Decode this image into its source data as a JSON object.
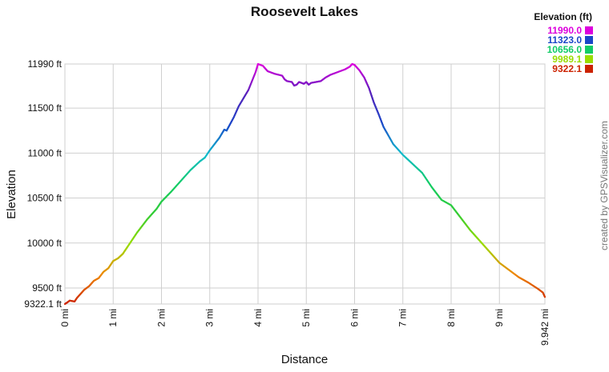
{
  "chart_data": {
    "type": "line",
    "title": "Roosevelt Lakes",
    "xlabel": "Distance",
    "ylabel": "Elevation",
    "credit": "created by GPSVisualizer.com",
    "xlim": [
      0,
      9.942
    ],
    "ylim": [
      9322.1,
      11990
    ],
    "x_ticks": [
      {
        "value": 0,
        "label": "0 mi"
      },
      {
        "value": 1,
        "label": "1 mi"
      },
      {
        "value": 2,
        "label": "2 mi"
      },
      {
        "value": 3,
        "label": "3 mi"
      },
      {
        "value": 4,
        "label": "4 mi"
      },
      {
        "value": 5,
        "label": "5 mi"
      },
      {
        "value": 6,
        "label": "6 mi"
      },
      {
        "value": 7,
        "label": "7 mi"
      },
      {
        "value": 8,
        "label": "8 mi"
      },
      {
        "value": 9,
        "label": "9 mi"
      },
      {
        "value": 9.942,
        "label": "9.942 mi"
      }
    ],
    "y_ticks": [
      {
        "value": 9322.1,
        "label": "9322.1 ft"
      },
      {
        "value": 9500,
        "label": "9500 ft"
      },
      {
        "value": 10000,
        "label": "10000 ft"
      },
      {
        "value": 10500,
        "label": "10500 ft"
      },
      {
        "value": 11000,
        "label": "11000 ft"
      },
      {
        "value": 11500,
        "label": "11500 ft"
      },
      {
        "value": 11990,
        "label": "11990 ft"
      }
    ],
    "grid": true,
    "legend": {
      "title": "Elevation (ft)",
      "placement": "top-right",
      "entries": [
        {
          "label": "11990.0",
          "color": "#dd00dd"
        },
        {
          "label": "11323.0",
          "color": "#1a47c8"
        },
        {
          "label": "10656.0",
          "color": "#11cc66"
        },
        {
          "label": "9989.1",
          "color": "#99dd00"
        },
        {
          "label": "9322.1",
          "color": "#cc2200"
        }
      ]
    },
    "color_scale": [
      {
        "value": 9322.1,
        "color": "#cc2200"
      },
      {
        "value": 9655.5,
        "color": "#ee8800"
      },
      {
        "value": 9989.1,
        "color": "#99dd00"
      },
      {
        "value": 10322.5,
        "color": "#33cc33"
      },
      {
        "value": 10656.0,
        "color": "#11cc66"
      },
      {
        "value": 10989.5,
        "color": "#11bbcc"
      },
      {
        "value": 11323.0,
        "color": "#1a47c8"
      },
      {
        "value": 11656.5,
        "color": "#5522bb"
      },
      {
        "value": 11990.0,
        "color": "#dd00dd"
      }
    ],
    "series": [
      {
        "x": [
          0,
          0.05,
          0.1,
          0.2,
          0.25,
          0.3,
          0.4,
          0.5,
          0.6,
          0.7,
          0.8,
          0.9,
          1.0,
          1.1,
          1.2,
          1.3,
          1.5,
          1.7,
          1.9,
          2.0,
          2.2,
          2.4,
          2.6,
          2.8,
          2.9,
          3.0,
          3.1,
          3.2,
          3.3,
          3.35,
          3.4,
          3.5,
          3.6,
          3.8,
          3.95,
          4.0,
          4.1,
          4.2,
          4.35,
          4.5,
          4.55,
          4.6,
          4.7,
          4.75,
          4.8,
          4.85,
          4.9,
          4.95,
          5.0,
          5.05,
          5.1,
          5.2,
          5.3,
          5.4,
          5.5,
          5.6,
          5.8,
          5.9,
          5.95,
          6.0,
          6.1,
          6.2,
          6.3,
          6.4,
          6.5,
          6.6,
          6.8,
          6.9,
          7.0,
          7.2,
          7.4,
          7.6,
          7.8,
          8.0,
          8.2,
          8.4,
          8.6,
          8.8,
          9.0,
          9.2,
          9.4,
          9.6,
          9.8,
          9.9,
          9.942
        ],
        "y": [
          9322.1,
          9340,
          9360,
          9350,
          9390,
          9420,
          9480,
          9520,
          9580,
          9610,
          9680,
          9720,
          9800,
          9830,
          9880,
          9960,
          10120,
          10260,
          10380,
          10460,
          10570,
          10690,
          10810,
          10910,
          10950,
          11030,
          11100,
          11170,
          11260,
          11250,
          11300,
          11400,
          11520,
          11700,
          11900,
          11990,
          11970,
          11910,
          11880,
          11860,
          11820,
          11800,
          11790,
          11750,
          11760,
          11790,
          11780,
          11770,
          11790,
          11760,
          11780,
          11790,
          11800,
          11840,
          11870,
          11890,
          11930,
          11960,
          11990,
          11980,
          11920,
          11840,
          11720,
          11560,
          11430,
          11290,
          11100,
          11040,
          10980,
          10880,
          10780,
          10620,
          10480,
          10420,
          10280,
          10140,
          10020,
          9900,
          9780,
          9700,
          9620,
          9560,
          9490,
          9450,
          9400
        ]
      }
    ]
  }
}
